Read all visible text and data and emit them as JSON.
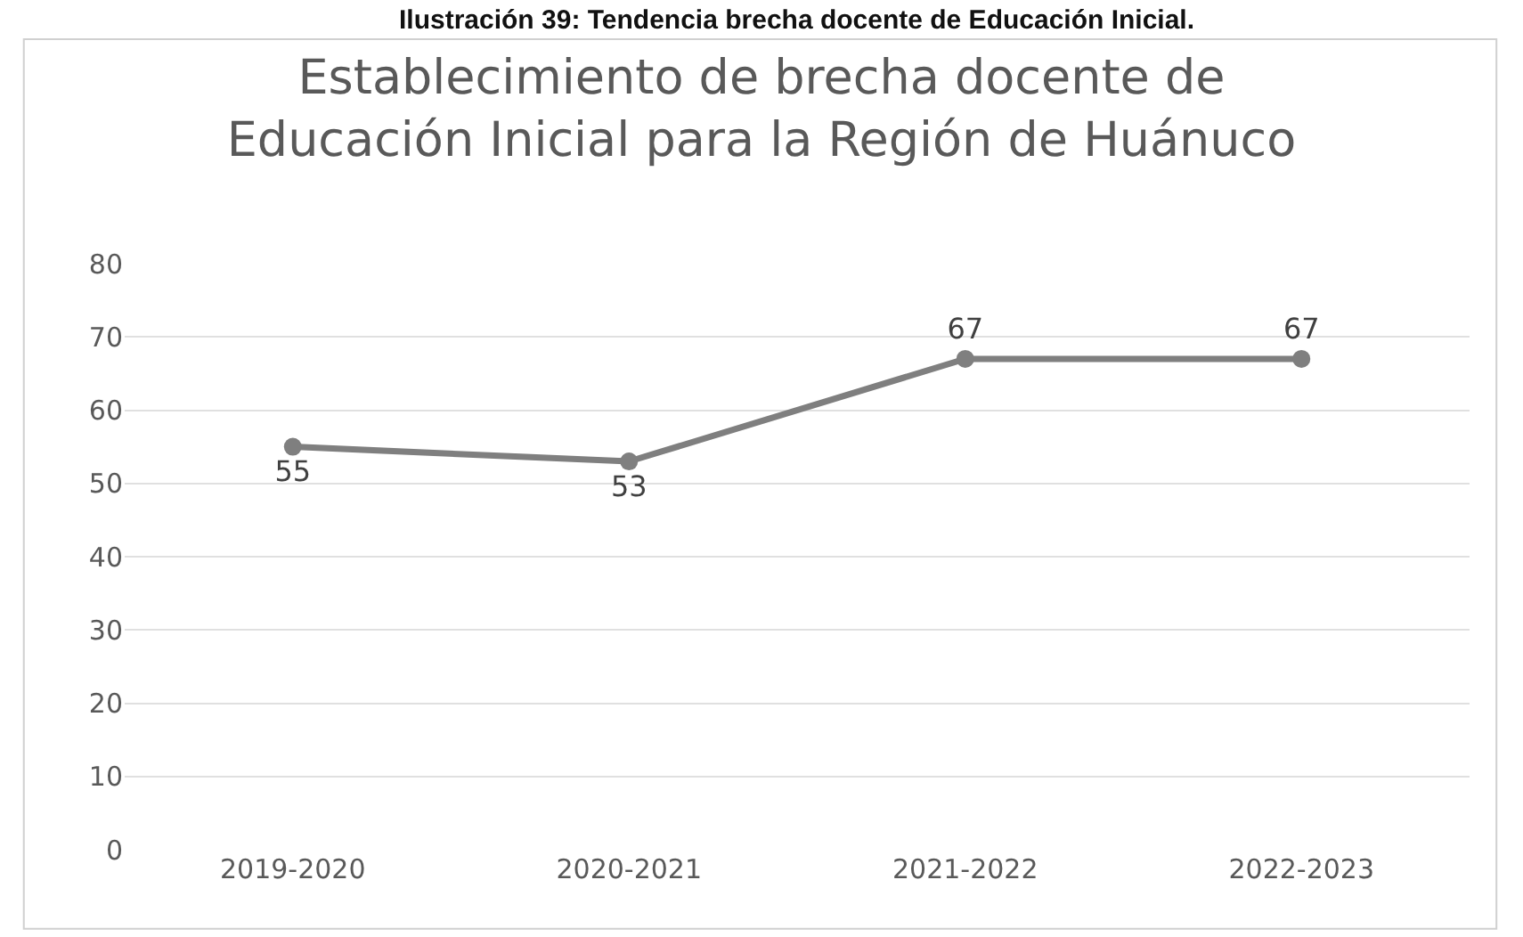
{
  "chart_data": {
    "type": "line",
    "title": "Establecimiento de brecha docente de\nEducación Inicial para la Región de Huánuco",
    "annotations": [
      "Ilustración 39: Tendencia brecha docente de Educación Inicial."
    ],
    "categories": [
      "2019-2020",
      "2020-2021",
      "2021-2022",
      "2022-2023"
    ],
    "series": [
      {
        "color": "#7f7f7f",
        "values": [
          55,
          53,
          67,
          67
        ]
      }
    ],
    "ylim": [
      0,
      80
    ],
    "yticks": [
      0,
      10,
      20,
      30,
      40,
      50,
      60,
      70,
      80
    ],
    "grid": "y",
    "marker": "circle",
    "line_style": "solid",
    "data_labels": true,
    "legend": false
  }
}
